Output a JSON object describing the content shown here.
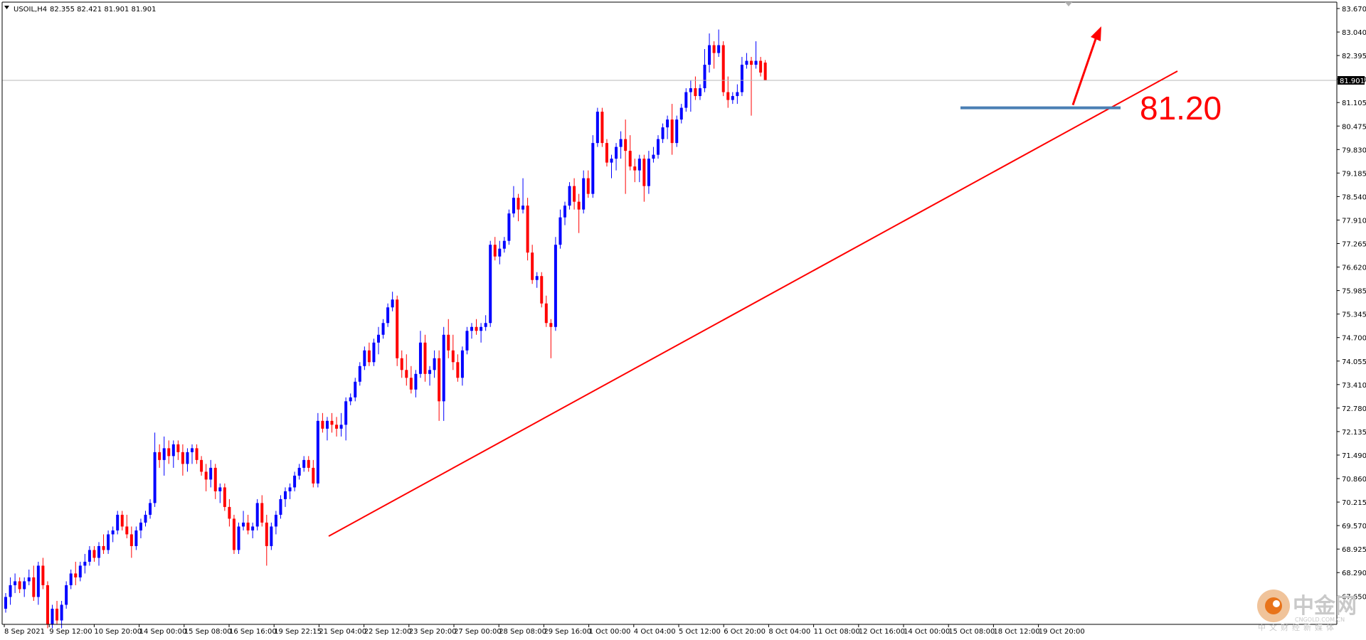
{
  "chart_data": {
    "type": "candlestick",
    "symbol_label": "USOIL,H4",
    "ohlc_label": "82.355 82.421 81.901 81.901",
    "last_price": "81.901",
    "ylim": [
      68.0,
      83.9
    ],
    "y_ticks": [
      "83.670",
      "83.040",
      "82.395",
      "81.750",
      "81.105",
      "80.475",
      "79.830",
      "79.185",
      "78.540",
      "77.910",
      "77.265",
      "76.620",
      "75.985",
      "75.345",
      "74.700",
      "74.055",
      "73.410",
      "72.780",
      "72.135",
      "71.490",
      "70.860",
      "70.215",
      "69.570",
      "68.925",
      "68.290",
      "67.650"
    ],
    "x_labels": [
      "8 Sep 2021",
      "9 Sep 12:00",
      "10 Sep 20:00",
      "14 Sep 00:00",
      "15 Sep 08:00",
      "16 Sep 16:00",
      "19 Sep 22:15",
      "21 Sep 04:00",
      "22 Sep 12:00",
      "23 Sep 20:00",
      "27 Sep 00:00",
      "28 Sep 08:00",
      "29 Sep 16:00",
      "1 Oct 00:00",
      "4 Oct 04:00",
      "5 Oct 12:00",
      "6 Oct 20:00",
      "8 Oct 04:00",
      "11 Oct 08:00",
      "12 Oct 16:00",
      "14 Oct 00:00",
      "15 Oct 08:00",
      "18 Oct 12:00",
      "19 Oct 20:00"
    ],
    "up_color": "#0000ff",
    "down_color": "#ff0000",
    "support_level": 81.2,
    "support_label": "81.20",
    "candles": [
      [
        68.4,
        68.8,
        68.3,
        68.7
      ],
      [
        68.7,
        69.2,
        68.5,
        69.0
      ],
      [
        69.0,
        69.3,
        68.8,
        69.1
      ],
      [
        69.1,
        69.2,
        68.8,
        68.9
      ],
      [
        68.9,
        69.2,
        68.7,
        69.1
      ],
      [
        69.1,
        69.4,
        69.0,
        69.2
      ],
      [
        69.2,
        69.5,
        68.6,
        68.7
      ],
      [
        68.7,
        69.6,
        68.5,
        69.5
      ],
      [
        69.5,
        69.7,
        68.9,
        69.0
      ],
      [
        69.0,
        69.1,
        67.9,
        68.0
      ],
      [
        68.0,
        68.5,
        67.9,
        68.4
      ],
      [
        68.4,
        68.6,
        68.0,
        68.1
      ],
      [
        68.1,
        68.6,
        67.9,
        68.5
      ],
      [
        68.5,
        69.1,
        68.4,
        69.0
      ],
      [
        69.0,
        69.4,
        68.9,
        69.3
      ],
      [
        69.3,
        69.6,
        69.0,
        69.2
      ],
      [
        69.2,
        69.6,
        69.1,
        69.5
      ],
      [
        69.5,
        69.8,
        69.3,
        69.6
      ],
      [
        69.6,
        70.0,
        69.5,
        69.9
      ],
      [
        69.9,
        70.0,
        69.6,
        69.7
      ],
      [
        69.7,
        70.1,
        69.5,
        70.0
      ],
      [
        70.0,
        70.3,
        69.8,
        69.9
      ],
      [
        69.9,
        70.4,
        69.8,
        70.3
      ],
      [
        70.3,
        70.5,
        70.1,
        70.4
      ],
      [
        70.4,
        70.9,
        70.3,
        70.8
      ],
      [
        70.8,
        70.9,
        70.4,
        70.5
      ],
      [
        70.5,
        70.8,
        70.2,
        70.3
      ],
      [
        70.3,
        70.5,
        69.7,
        70.0
      ],
      [
        70.0,
        70.5,
        69.9,
        70.4
      ],
      [
        70.4,
        70.7,
        70.2,
        70.6
      ],
      [
        70.6,
        70.9,
        70.5,
        70.8
      ],
      [
        70.8,
        71.2,
        70.7,
        71.1
      ],
      [
        71.1,
        72.9,
        71.0,
        72.4
      ],
      [
        72.4,
        72.6,
        72.0,
        72.2
      ],
      [
        72.2,
        72.8,
        71.8,
        72.5
      ],
      [
        72.5,
        72.7,
        72.1,
        72.3
      ],
      [
        72.3,
        72.7,
        72.0,
        72.6
      ],
      [
        72.6,
        72.7,
        72.2,
        72.4
      ],
      [
        72.4,
        72.6,
        71.8,
        72.1
      ],
      [
        72.1,
        72.5,
        71.9,
        72.4
      ],
      [
        72.4,
        72.6,
        72.1,
        72.5
      ],
      [
        72.5,
        72.6,
        72.1,
        72.2
      ],
      [
        72.2,
        72.3,
        71.8,
        71.9
      ],
      [
        71.9,
        72.1,
        71.4,
        71.7
      ],
      [
        71.7,
        72.2,
        71.5,
        72.0
      ],
      [
        72.0,
        72.1,
        71.2,
        71.4
      ],
      [
        71.4,
        71.6,
        71.1,
        71.5
      ],
      [
        71.5,
        71.6,
        70.9,
        71.0
      ],
      [
        71.0,
        71.2,
        70.5,
        70.7
      ],
      [
        70.7,
        70.8,
        69.8,
        69.9
      ],
      [
        69.9,
        70.6,
        69.8,
        70.5
      ],
      [
        70.5,
        70.9,
        70.4,
        70.6
      ],
      [
        70.6,
        70.8,
        70.3,
        70.4
      ],
      [
        70.4,
        70.6,
        70.2,
        70.5
      ],
      [
        70.5,
        71.2,
        70.4,
        71.1
      ],
      [
        71.1,
        71.3,
        70.5,
        70.6
      ],
      [
        70.6,
        70.8,
        69.5,
        70.0
      ],
      [
        70.0,
        70.6,
        69.9,
        70.5
      ],
      [
        70.5,
        70.9,
        70.3,
        70.8
      ],
      [
        70.8,
        71.3,
        70.7,
        71.2
      ],
      [
        71.2,
        71.5,
        71.0,
        71.4
      ],
      [
        71.4,
        71.6,
        71.2,
        71.5
      ],
      [
        71.5,
        71.9,
        71.4,
        71.8
      ],
      [
        71.8,
        72.1,
        71.7,
        72.0
      ],
      [
        72.0,
        72.3,
        71.9,
        72.2
      ],
      [
        72.2,
        72.3,
        71.9,
        72.0
      ],
      [
        72.0,
        72.2,
        71.5,
        71.6
      ],
      [
        71.6,
        73.4,
        71.5,
        73.2
      ],
      [
        73.2,
        73.4,
        72.9,
        73.0
      ],
      [
        73.0,
        73.3,
        72.7,
        73.2
      ],
      [
        73.2,
        73.4,
        72.9,
        73.1
      ],
      [
        73.1,
        73.3,
        72.8,
        73.0
      ],
      [
        73.0,
        73.4,
        72.8,
        73.1
      ],
      [
        73.1,
        73.8,
        72.7,
        73.7
      ],
      [
        73.7,
        73.9,
        73.6,
        73.8
      ],
      [
        73.8,
        74.3,
        73.7,
        74.2
      ],
      [
        74.2,
        74.7,
        74.1,
        74.6
      ],
      [
        74.6,
        75.1,
        74.5,
        75.0
      ],
      [
        75.0,
        75.2,
        74.6,
        74.7
      ],
      [
        74.7,
        75.3,
        74.6,
        75.2
      ],
      [
        75.2,
        75.6,
        74.9,
        75.4
      ],
      [
        75.4,
        75.8,
        75.3,
        75.7
      ],
      [
        75.7,
        76.2,
        75.6,
        76.1
      ],
      [
        76.1,
        76.5,
        76.0,
        76.3
      ],
      [
        76.3,
        76.4,
        74.6,
        74.8
      ],
      [
        74.8,
        75.0,
        74.3,
        74.5
      ],
      [
        74.5,
        74.9,
        74.1,
        74.3
      ],
      [
        74.3,
        74.6,
        73.9,
        74.0
      ],
      [
        74.0,
        74.5,
        73.8,
        74.4
      ],
      [
        74.4,
        75.5,
        74.3,
        75.2
      ],
      [
        75.2,
        75.4,
        74.2,
        74.4
      ],
      [
        74.4,
        74.6,
        74.1,
        74.5
      ],
      [
        74.5,
        75.0,
        74.3,
        74.8
      ],
      [
        74.8,
        75.0,
        73.2,
        73.7
      ],
      [
        73.7,
        75.6,
        73.2,
        75.4
      ],
      [
        75.4,
        75.8,
        74.8,
        75.0
      ],
      [
        75.0,
        75.4,
        74.5,
        74.7
      ],
      [
        74.7,
        74.9,
        74.2,
        74.3
      ],
      [
        74.3,
        75.1,
        74.1,
        75.0
      ],
      [
        75.0,
        75.6,
        74.9,
        75.5
      ],
      [
        75.5,
        75.7,
        75.3,
        75.6
      ],
      [
        75.6,
        75.8,
        75.4,
        75.5
      ],
      [
        75.5,
        75.7,
        75.2,
        75.6
      ],
      [
        75.6,
        75.9,
        75.5,
        75.7
      ],
      [
        75.7,
        77.8,
        75.6,
        77.7
      ],
      [
        77.7,
        77.9,
        77.3,
        77.4
      ],
      [
        77.4,
        77.8,
        77.2,
        77.6
      ],
      [
        77.6,
        77.9,
        77.5,
        77.8
      ],
      [
        77.8,
        78.6,
        77.7,
        78.5
      ],
      [
        78.5,
        79.2,
        78.4,
        78.9
      ],
      [
        78.9,
        79.0,
        78.3,
        78.6
      ],
      [
        78.6,
        79.4,
        78.5,
        78.7
      ],
      [
        78.7,
        78.9,
        77.3,
        77.5
      ],
      [
        77.5,
        77.7,
        76.7,
        76.8
      ],
      [
        76.8,
        77.0,
        76.6,
        76.9
      ],
      [
        76.9,
        77.0,
        76.1,
        76.2
      ],
      [
        76.2,
        76.4,
        75.6,
        75.7
      ],
      [
        75.7,
        75.8,
        74.8,
        75.6
      ],
      [
        75.6,
        77.9,
        75.5,
        77.7
      ],
      [
        77.7,
        78.6,
        77.6,
        78.4
      ],
      [
        78.4,
        78.8,
        78.2,
        78.7
      ],
      [
        78.7,
        79.3,
        78.6,
        79.2
      ],
      [
        79.2,
        79.4,
        78.6,
        78.8
      ],
      [
        78.8,
        79.0,
        78.0,
        78.6
      ],
      [
        78.6,
        79.6,
        78.5,
        79.4
      ],
      [
        79.4,
        79.6,
        78.9,
        79.0
      ],
      [
        79.0,
        80.5,
        78.9,
        80.3
      ],
      [
        80.3,
        81.2,
        80.2,
        81.1
      ],
      [
        81.1,
        81.2,
        80.2,
        80.3
      ],
      [
        80.3,
        80.4,
        79.7,
        79.8
      ],
      [
        79.8,
        80.0,
        79.4,
        79.9
      ],
      [
        79.9,
        80.3,
        79.6,
        80.2
      ],
      [
        80.2,
        80.6,
        79.9,
        80.4
      ],
      [
        80.4,
        80.9,
        79.0,
        80.1
      ],
      [
        80.1,
        80.5,
        79.6,
        79.7
      ],
      [
        79.7,
        79.9,
        79.3,
        79.6
      ],
      [
        79.6,
        80.0,
        79.3,
        79.9
      ],
      [
        79.9,
        80.0,
        78.8,
        79.2
      ],
      [
        79.2,
        80.1,
        79.0,
        79.9
      ],
      [
        79.9,
        80.2,
        79.8,
        80.0
      ],
      [
        80.0,
        80.5,
        79.9,
        80.4
      ],
      [
        80.4,
        80.8,
        80.3,
        80.7
      ],
      [
        80.7,
        81.0,
        80.4,
        80.9
      ],
      [
        80.9,
        81.3,
        80.0,
        80.3
      ],
      [
        80.3,
        81.0,
        80.2,
        80.9
      ],
      [
        80.9,
        81.3,
        80.8,
        81.2
      ],
      [
        81.2,
        81.7,
        81.1,
        81.6
      ],
      [
        81.6,
        81.9,
        81.1,
        81.7
      ],
      [
        81.7,
        82.0,
        81.4,
        81.5
      ],
      [
        81.5,
        81.8,
        81.4,
        81.7
      ],
      [
        81.7,
        82.7,
        81.6,
        82.3
      ],
      [
        82.3,
        83.1,
        82.1,
        82.8
      ],
      [
        82.8,
        82.9,
        82.2,
        82.6
      ],
      [
        82.6,
        83.2,
        82.5,
        82.8
      ],
      [
        82.8,
        82.9,
        81.5,
        81.6
      ],
      [
        81.6,
        82.0,
        81.2,
        81.4
      ],
      [
        81.4,
        81.6,
        81.3,
        81.5
      ],
      [
        81.5,
        81.8,
        81.3,
        81.6
      ],
      [
        81.6,
        82.5,
        81.5,
        82.3
      ],
      [
        82.3,
        82.6,
        82.2,
        82.4
      ],
      [
        82.4,
        82.5,
        81.0,
        82.3
      ],
      [
        82.3,
        82.9,
        82.2,
        82.4
      ],
      [
        82.4,
        82.5,
        82.0,
        82.1
      ],
      [
        82.355,
        82.421,
        81.901,
        81.901
      ]
    ]
  },
  "watermark": {
    "brand": "中金网",
    "url": "CNGOLD.COM.CN",
    "slogan": "中文财经新媒体"
  }
}
